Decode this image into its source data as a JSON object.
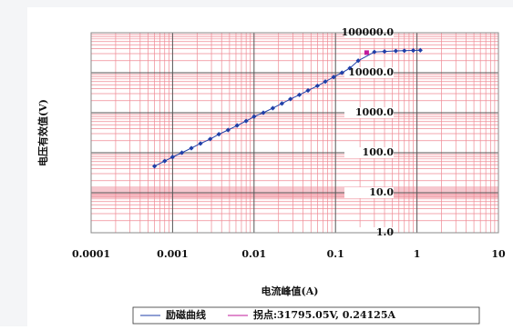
{
  "chart_data": {
    "type": "line",
    "x_label": "电流峰值(A)",
    "y_label": "电压有效值(V)",
    "log_x": true,
    "log_y": true,
    "grid": true,
    "minor_grid": true,
    "legend": "bottom",
    "xlim": [
      0.0001,
      10
    ],
    "ylim": [
      1,
      100000
    ],
    "xticks": [
      0.0001,
      0.001,
      0.01,
      0.1,
      1,
      10
    ],
    "yticks": [
      {
        "value": 1,
        "label": "1.0"
      },
      {
        "value": 10,
        "label": "10.0"
      },
      {
        "value": 100,
        "label": "100.0"
      },
      {
        "value": 1000,
        "label": "1000.0"
      },
      {
        "value": 10000,
        "label": "10000.0"
      },
      {
        "value": 100000,
        "label": "100000.0"
      }
    ],
    "series": [
      {
        "name": "励磁曲线",
        "color": "#1f3fa8",
        "marker": "diamond",
        "x": [
          0.0006,
          0.0008,
          0.001,
          0.0013,
          0.0017,
          0.0022,
          0.0029,
          0.0037,
          0.0048,
          0.0062,
          0.008,
          0.01,
          0.013,
          0.017,
          0.022,
          0.028,
          0.036,
          0.046,
          0.06,
          0.075,
          0.095,
          0.12,
          0.15,
          0.19,
          0.3,
          0.4,
          0.55,
          0.7,
          0.9,
          1.1
        ],
        "values": [
          46,
          62,
          78,
          100,
          130,
          170,
          220,
          290,
          370,
          480,
          620,
          800,
          1000,
          1300,
          1700,
          2200,
          2800,
          3600,
          4700,
          6000,
          7800,
          10000,
          13000,
          20000,
          33000,
          34000,
          35000,
          35500,
          36000,
          36500
        ]
      },
      {
        "name": "拐点:31795.05V,  0.24125A",
        "color": "#c2189b",
        "marker": "square",
        "x": [
          0.24125
        ],
        "values": [
          31795.05
        ]
      }
    ]
  }
}
